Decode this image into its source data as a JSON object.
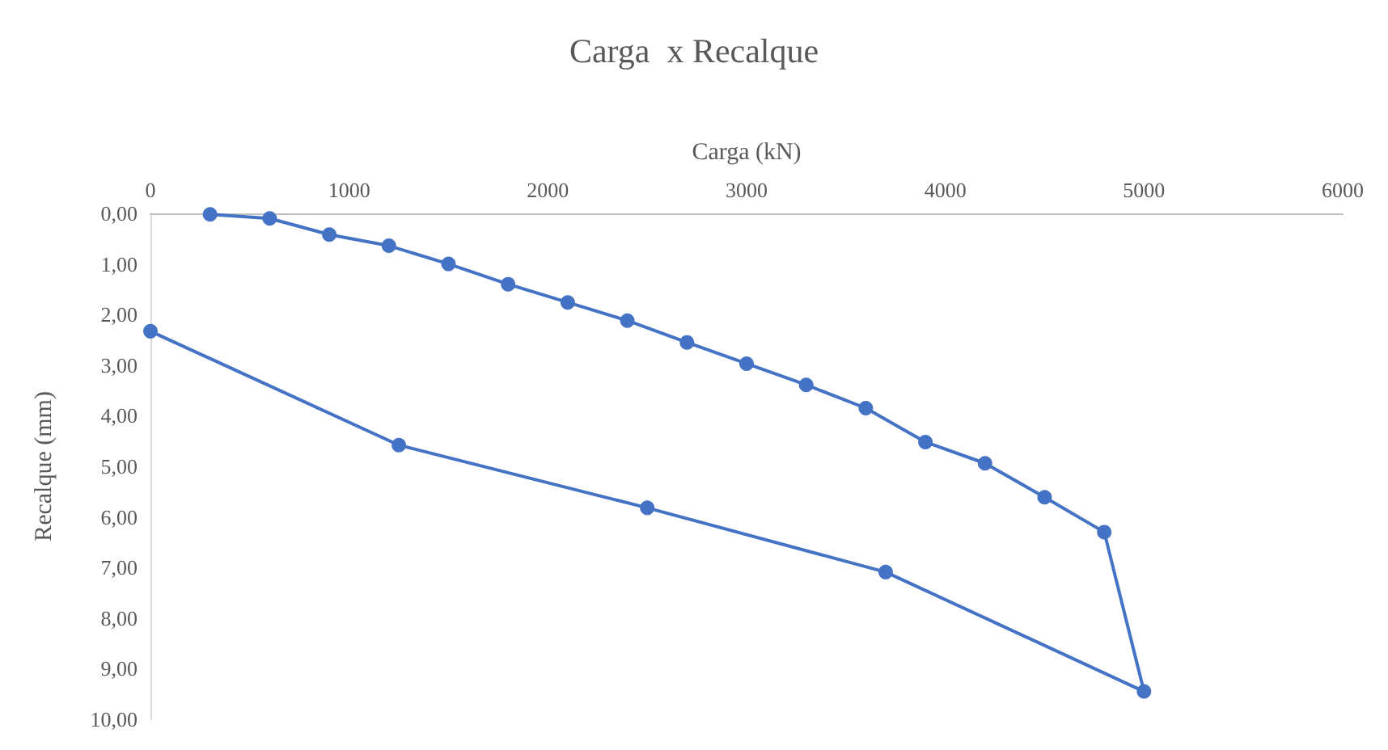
{
  "chart_data": {
    "type": "line",
    "title": "Carga  x Recalque",
    "xlabel": "Carga (kN)",
    "ylabel": "Recalque (mm)",
    "x": [
      300,
      600,
      900,
      1200,
      1500,
      1800,
      2100,
      2400,
      2700,
      3000,
      3300,
      3600,
      3900,
      4200,
      4500,
      4800,
      5000,
      3700,
      2500,
      1250,
      0
    ],
    "series": [
      {
        "color": "#4472c4",
        "values": [
          0.02,
          0.1,
          0.42,
          0.64,
          1.0,
          1.4,
          1.76,
          2.12,
          2.55,
          2.97,
          3.39,
          3.85,
          4.52,
          4.94,
          5.61,
          6.3,
          9.45,
          7.09,
          5.82,
          4.58,
          2.33
        ]
      }
    ],
    "xlim": [
      0,
      6000
    ],
    "xticks": [
      0,
      1000,
      2000,
      3000,
      4000,
      5000,
      6000
    ],
    "ylim": [
      10,
      0
    ],
    "yticks": [
      {
        "value": 0,
        "label": "0,00"
      },
      {
        "value": 1,
        "label": "1,00"
      },
      {
        "value": 2,
        "label": "2,00"
      },
      {
        "value": 3,
        "label": "3,00"
      },
      {
        "value": 4,
        "label": "4,00"
      },
      {
        "value": 5,
        "label": "5,00"
      },
      {
        "value": 6,
        "label": "6,00"
      },
      {
        "value": 7,
        "label": "7,00"
      },
      {
        "value": 8,
        "label": "8,00"
      },
      {
        "value": 9,
        "label": "9,00"
      },
      {
        "value": 10,
        "label": "10,00"
      }
    ],
    "grid": false,
    "marker": "circle",
    "line_style": "solid"
  }
}
